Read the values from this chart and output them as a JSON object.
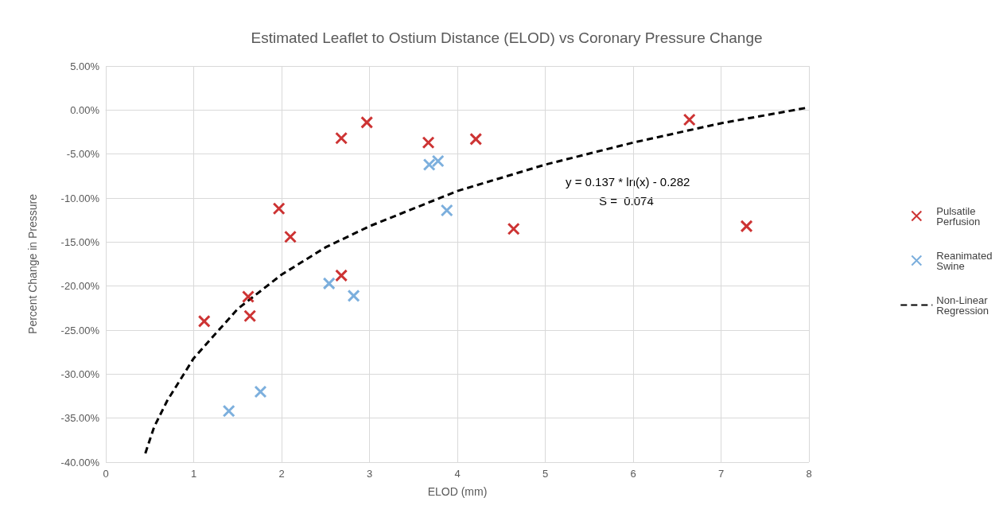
{
  "chart_data": {
    "type": "scatter",
    "title": "Estimated Leaflet to Ostium Distance (ELOD) vs Coronary Pressure Change",
    "xlabel": "ELOD (mm)",
    "ylabel": "Percent Change in Pressure",
    "series": [
      {
        "name": "Pulsatile Perfusion",
        "color": "#c00000",
        "x": [
          1.12,
          1.62,
          1.64,
          1.97,
          2.1,
          2.68,
          2.68,
          2.97,
          3.67,
          4.21,
          4.64,
          6.64,
          7.29
        ],
        "values": [
          -24.0,
          -21.2,
          -23.4,
          -11.2,
          -14.4,
          -3.2,
          -18.8,
          -1.4,
          -3.7,
          -3.3,
          -13.5,
          -1.1,
          -13.2
        ]
      },
      {
        "name": "Reanimated Swine",
        "color": "#5b9bd5",
        "x": [
          1.4,
          1.76,
          2.54,
          2.82,
          3.68,
          3.78,
          3.88
        ],
        "values": [
          -34.2,
          -32.0,
          -19.7,
          -21.1,
          -6.2,
          -5.8,
          -11.4
        ]
      },
      {
        "name": "Non-Linear Regression",
        "type": "line",
        "color": "#000000",
        "marker": "none",
        "line_style": "dashed",
        "x": [
          0.45,
          0.55,
          0.7,
          1,
          1.5,
          2,
          2.5,
          3,
          4,
          5,
          6,
          7,
          8
        ],
        "values": [
          -39.0,
          -36.0,
          -33.0,
          -28.2,
          -22.6,
          -18.7,
          -15.6,
          -13.2,
          -9.2,
          -6.2,
          -3.7,
          -1.5,
          0.3
        ]
      }
    ],
    "annotations": [
      "y = 0.137 * ln(x) - 0.282",
      "S =  0.074"
    ],
    "xlim": [
      0,
      8
    ],
    "xticks": [
      0,
      1,
      2,
      3,
      4,
      5,
      6,
      7,
      8
    ],
    "ylim": [
      -40,
      5
    ],
    "yticks": [
      {
        "value": -40,
        "label": "-40.00%"
      },
      {
        "value": -35,
        "label": "-35.00%"
      },
      {
        "value": -30,
        "label": "-30.00%"
      },
      {
        "value": -25,
        "label": "-25.00%"
      },
      {
        "value": -20,
        "label": "-20.00%"
      },
      {
        "value": -15,
        "label": "-15.00%"
      },
      {
        "value": -10,
        "label": "-10.00%"
      },
      {
        "value": -5,
        "label": "-5.00%"
      },
      {
        "value": 0,
        "label": "0.00%"
      },
      {
        "value": 5,
        "label": "5.00%"
      }
    ],
    "grid": true,
    "legend": "right",
    "marker": "cross"
  }
}
